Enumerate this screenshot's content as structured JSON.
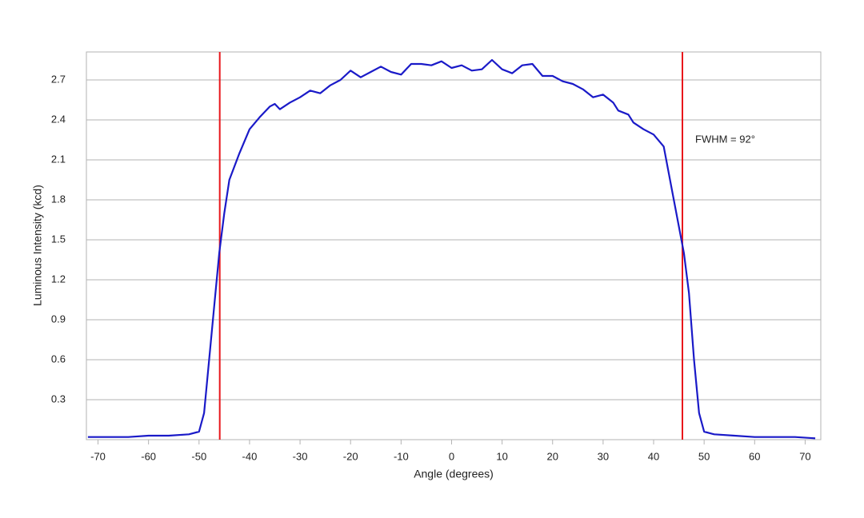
{
  "chart_data": {
    "type": "line",
    "x_label": "Angle (degrees)",
    "y_label": "Luminous Intensity (kcd)",
    "annotation": "FWHM = 92°",
    "xlim": [
      -72.3,
      73.1
    ],
    "ylim": [
      0,
      2.91
    ],
    "xticks": [
      -70,
      -60,
      -50,
      -40,
      -30,
      -20,
      -10,
      0,
      10,
      20,
      30,
      40,
      50,
      60,
      70
    ],
    "yticks": [
      0.3,
      0.6,
      0.9,
      1.2,
      1.5,
      1.8,
      2.1,
      2.4,
      2.7
    ],
    "grid": true,
    "vlines": {
      "color": "#e8161b",
      "x": [
        -45.9,
        45.7
      ]
    },
    "x": [
      -72,
      -68,
      -64,
      -60,
      -56,
      -52,
      -50,
      -49,
      -48,
      -47,
      -46,
      -45,
      -44,
      -42,
      -40,
      -38,
      -36,
      -35,
      -34,
      -32,
      -30,
      -28,
      -26,
      -24,
      -22,
      -20,
      -18,
      -16,
      -14,
      -12,
      -10,
      -8,
      -6,
      -4,
      -2,
      0,
      2,
      4,
      6,
      8,
      10,
      12,
      14,
      16,
      18,
      20,
      22,
      24,
      26,
      28,
      30,
      32,
      33,
      35,
      36,
      38,
      40,
      42,
      43,
      44,
      45,
      46,
      47,
      48,
      49,
      50,
      52,
      56,
      60,
      64,
      68,
      72
    ],
    "series": [
      {
        "color": "#1a1ac8",
        "values": [
          0.02,
          0.02,
          0.02,
          0.03,
          0.03,
          0.04,
          0.06,
          0.2,
          0.6,
          1.0,
          1.4,
          1.7,
          1.95,
          2.15,
          2.33,
          2.42,
          2.5,
          2.52,
          2.48,
          2.53,
          2.57,
          2.62,
          2.6,
          2.66,
          2.7,
          2.77,
          2.72,
          2.76,
          2.8,
          2.76,
          2.74,
          2.82,
          2.82,
          2.81,
          2.84,
          2.79,
          2.81,
          2.77,
          2.78,
          2.85,
          2.78,
          2.75,
          2.81,
          2.82,
          2.73,
          2.73,
          2.69,
          2.67,
          2.63,
          2.57,
          2.59,
          2.53,
          2.47,
          2.44,
          2.38,
          2.33,
          2.29,
          2.2,
          2.0,
          1.8,
          1.6,
          1.4,
          1.1,
          0.6,
          0.2,
          0.06,
          0.04,
          0.03,
          0.02,
          0.02,
          0.02,
          0.01
        ]
      }
    ]
  }
}
